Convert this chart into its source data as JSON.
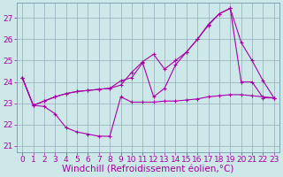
{
  "bg_color": "#cce8e8",
  "line_color": "#aa00aa",
  "grid_color": "#99aabb",
  "xlabel": "Windchill (Refroidissement éolien,°C)",
  "xlabel_fontsize": 7.5,
  "tick_fontsize": 6.5,
  "ylim": [
    20.7,
    27.7
  ],
  "xlim": [
    -0.5,
    23.5
  ],
  "yticks": [
    21,
    22,
    23,
    24,
    25,
    26,
    27
  ],
  "xticks": [
    0,
    1,
    2,
    3,
    4,
    5,
    6,
    7,
    8,
    9,
    10,
    11,
    12,
    13,
    14,
    15,
    16,
    17,
    18,
    19,
    20,
    21,
    22,
    23
  ],
  "line1_x": [
    0,
    1,
    2,
    3,
    4,
    5,
    6,
    7,
    8,
    9,
    10,
    11,
    12,
    13,
    14,
    15,
    16,
    17,
    18,
    19,
    20,
    21,
    22,
    23
  ],
  "line1_y": [
    24.2,
    22.9,
    22.85,
    22.5,
    21.85,
    21.65,
    21.55,
    21.45,
    21.45,
    23.3,
    23.05,
    23.05,
    23.05,
    23.1,
    23.1,
    23.15,
    23.2,
    23.3,
    23.35,
    23.4,
    23.4,
    23.35,
    23.3,
    23.25
  ],
  "line2_x": [
    0,
    1,
    2,
    3,
    4,
    5,
    6,
    7,
    8,
    9,
    10,
    11,
    12,
    13,
    14,
    15,
    16,
    17,
    18,
    19,
    20,
    21,
    22,
    23
  ],
  "line2_y": [
    24.2,
    22.9,
    23.1,
    23.3,
    23.45,
    23.55,
    23.6,
    23.65,
    23.7,
    24.05,
    24.2,
    24.9,
    23.3,
    23.7,
    24.8,
    25.4,
    26.0,
    26.7,
    27.2,
    27.45,
    25.85,
    25.0,
    24.05,
    23.25
  ],
  "line3_x": [
    0,
    1,
    2,
    3,
    4,
    5,
    6,
    7,
    8,
    9,
    10,
    11,
    12,
    13,
    14,
    15,
    16,
    17,
    18,
    19,
    20,
    21,
    22,
    23
  ],
  "line3_y": [
    24.2,
    22.9,
    23.1,
    23.3,
    23.45,
    23.55,
    23.6,
    23.65,
    23.7,
    23.85,
    24.45,
    24.95,
    25.3,
    24.6,
    25.0,
    25.4,
    26.0,
    26.65,
    27.2,
    27.45,
    24.0,
    24.0,
    23.25,
    23.25
  ]
}
